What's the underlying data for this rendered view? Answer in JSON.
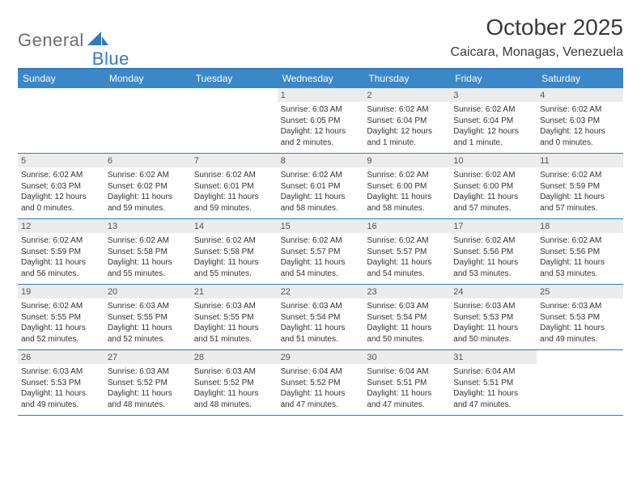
{
  "styling": {
    "page_bg": "#ffffff",
    "text_color": "#333333",
    "header_rule_color": "#2f7bbf",
    "dow_bg": "#3b87c8",
    "dow_text": "#ffffff",
    "daynum_bg": "#ececec",
    "daynum_text": "#555555",
    "week_divider": "#2f7bbf",
    "font_family": "Arial",
    "month_title_fontsize": 28,
    "location_fontsize": 16,
    "dow_fontsize": 12,
    "body_fontsize": 10
  },
  "logo": {
    "part1": "General",
    "part2": "Blue",
    "shape_color": "#2f7bbf"
  },
  "title": {
    "month": "October 2025",
    "location": "Caicara, Monagas, Venezuela"
  },
  "dow": [
    "Sunday",
    "Monday",
    "Tuesday",
    "Wednesday",
    "Thursday",
    "Friday",
    "Saturday"
  ],
  "weeks": [
    [
      {
        "n": "",
        "l1": "",
        "l2": "",
        "l3": "",
        "l4": ""
      },
      {
        "n": "",
        "l1": "",
        "l2": "",
        "l3": "",
        "l4": ""
      },
      {
        "n": "",
        "l1": "",
        "l2": "",
        "l3": "",
        "l4": ""
      },
      {
        "n": "1",
        "l1": "Sunrise: 6:03 AM",
        "l2": "Sunset: 6:05 PM",
        "l3": "Daylight: 12 hours",
        "l4": "and 2 minutes."
      },
      {
        "n": "2",
        "l1": "Sunrise: 6:02 AM",
        "l2": "Sunset: 6:04 PM",
        "l3": "Daylight: 12 hours",
        "l4": "and 1 minute."
      },
      {
        "n": "3",
        "l1": "Sunrise: 6:02 AM",
        "l2": "Sunset: 6:04 PM",
        "l3": "Daylight: 12 hours",
        "l4": "and 1 minute."
      },
      {
        "n": "4",
        "l1": "Sunrise: 6:02 AM",
        "l2": "Sunset: 6:03 PM",
        "l3": "Daylight: 12 hours",
        "l4": "and 0 minutes."
      }
    ],
    [
      {
        "n": "5",
        "l1": "Sunrise: 6:02 AM",
        "l2": "Sunset: 6:03 PM",
        "l3": "Daylight: 12 hours",
        "l4": "and 0 minutes."
      },
      {
        "n": "6",
        "l1": "Sunrise: 6:02 AM",
        "l2": "Sunset: 6:02 PM",
        "l3": "Daylight: 11 hours",
        "l4": "and 59 minutes."
      },
      {
        "n": "7",
        "l1": "Sunrise: 6:02 AM",
        "l2": "Sunset: 6:01 PM",
        "l3": "Daylight: 11 hours",
        "l4": "and 59 minutes."
      },
      {
        "n": "8",
        "l1": "Sunrise: 6:02 AM",
        "l2": "Sunset: 6:01 PM",
        "l3": "Daylight: 11 hours",
        "l4": "and 58 minutes."
      },
      {
        "n": "9",
        "l1": "Sunrise: 6:02 AM",
        "l2": "Sunset: 6:00 PM",
        "l3": "Daylight: 11 hours",
        "l4": "and 58 minutes."
      },
      {
        "n": "10",
        "l1": "Sunrise: 6:02 AM",
        "l2": "Sunset: 6:00 PM",
        "l3": "Daylight: 11 hours",
        "l4": "and 57 minutes."
      },
      {
        "n": "11",
        "l1": "Sunrise: 6:02 AM",
        "l2": "Sunset: 5:59 PM",
        "l3": "Daylight: 11 hours",
        "l4": "and 57 minutes."
      }
    ],
    [
      {
        "n": "12",
        "l1": "Sunrise: 6:02 AM",
        "l2": "Sunset: 5:59 PM",
        "l3": "Daylight: 11 hours",
        "l4": "and 56 minutes."
      },
      {
        "n": "13",
        "l1": "Sunrise: 6:02 AM",
        "l2": "Sunset: 5:58 PM",
        "l3": "Daylight: 11 hours",
        "l4": "and 55 minutes."
      },
      {
        "n": "14",
        "l1": "Sunrise: 6:02 AM",
        "l2": "Sunset: 5:58 PM",
        "l3": "Daylight: 11 hours",
        "l4": "and 55 minutes."
      },
      {
        "n": "15",
        "l1": "Sunrise: 6:02 AM",
        "l2": "Sunset: 5:57 PM",
        "l3": "Daylight: 11 hours",
        "l4": "and 54 minutes."
      },
      {
        "n": "16",
        "l1": "Sunrise: 6:02 AM",
        "l2": "Sunset: 5:57 PM",
        "l3": "Daylight: 11 hours",
        "l4": "and 54 minutes."
      },
      {
        "n": "17",
        "l1": "Sunrise: 6:02 AM",
        "l2": "Sunset: 5:56 PM",
        "l3": "Daylight: 11 hours",
        "l4": "and 53 minutes."
      },
      {
        "n": "18",
        "l1": "Sunrise: 6:02 AM",
        "l2": "Sunset: 5:56 PM",
        "l3": "Daylight: 11 hours",
        "l4": "and 53 minutes."
      }
    ],
    [
      {
        "n": "19",
        "l1": "Sunrise: 6:02 AM",
        "l2": "Sunset: 5:55 PM",
        "l3": "Daylight: 11 hours",
        "l4": "and 52 minutes."
      },
      {
        "n": "20",
        "l1": "Sunrise: 6:03 AM",
        "l2": "Sunset: 5:55 PM",
        "l3": "Daylight: 11 hours",
        "l4": "and 52 minutes."
      },
      {
        "n": "21",
        "l1": "Sunrise: 6:03 AM",
        "l2": "Sunset: 5:55 PM",
        "l3": "Daylight: 11 hours",
        "l4": "and 51 minutes."
      },
      {
        "n": "22",
        "l1": "Sunrise: 6:03 AM",
        "l2": "Sunset: 5:54 PM",
        "l3": "Daylight: 11 hours",
        "l4": "and 51 minutes."
      },
      {
        "n": "23",
        "l1": "Sunrise: 6:03 AM",
        "l2": "Sunset: 5:54 PM",
        "l3": "Daylight: 11 hours",
        "l4": "and 50 minutes."
      },
      {
        "n": "24",
        "l1": "Sunrise: 6:03 AM",
        "l2": "Sunset: 5:53 PM",
        "l3": "Daylight: 11 hours",
        "l4": "and 50 minutes."
      },
      {
        "n": "25",
        "l1": "Sunrise: 6:03 AM",
        "l2": "Sunset: 5:53 PM",
        "l3": "Daylight: 11 hours",
        "l4": "and 49 minutes."
      }
    ],
    [
      {
        "n": "26",
        "l1": "Sunrise: 6:03 AM",
        "l2": "Sunset: 5:53 PM",
        "l3": "Daylight: 11 hours",
        "l4": "and 49 minutes."
      },
      {
        "n": "27",
        "l1": "Sunrise: 6:03 AM",
        "l2": "Sunset: 5:52 PM",
        "l3": "Daylight: 11 hours",
        "l4": "and 48 minutes."
      },
      {
        "n": "28",
        "l1": "Sunrise: 6:03 AM",
        "l2": "Sunset: 5:52 PM",
        "l3": "Daylight: 11 hours",
        "l4": "and 48 minutes."
      },
      {
        "n": "29",
        "l1": "Sunrise: 6:04 AM",
        "l2": "Sunset: 5:52 PM",
        "l3": "Daylight: 11 hours",
        "l4": "and 47 minutes."
      },
      {
        "n": "30",
        "l1": "Sunrise: 6:04 AM",
        "l2": "Sunset: 5:51 PM",
        "l3": "Daylight: 11 hours",
        "l4": "and 47 minutes."
      },
      {
        "n": "31",
        "l1": "Sunrise: 6:04 AM",
        "l2": "Sunset: 5:51 PM",
        "l3": "Daylight: 11 hours",
        "l4": "and 47 minutes."
      },
      {
        "n": "",
        "l1": "",
        "l2": "",
        "l3": "",
        "l4": ""
      }
    ]
  ]
}
